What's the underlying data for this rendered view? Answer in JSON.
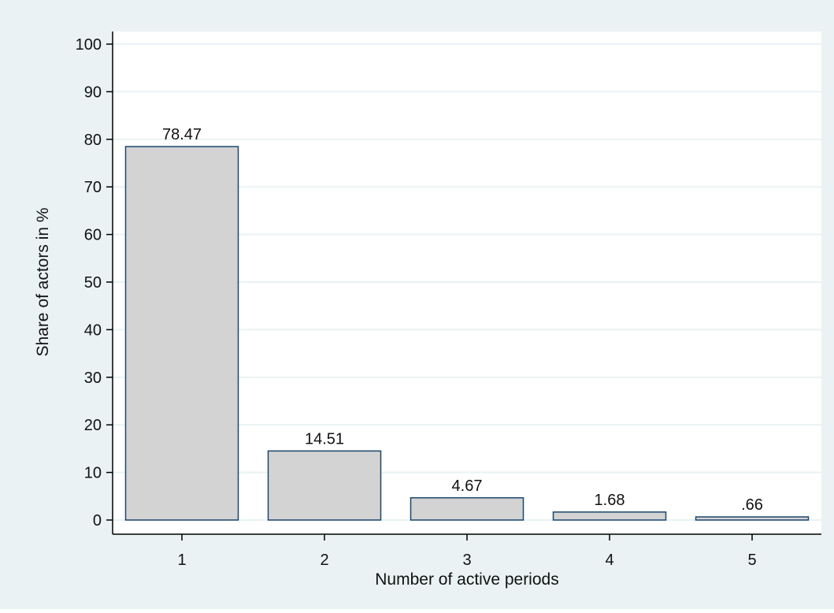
{
  "colors": {
    "background": "#eaf2f3",
    "plot_area": "#ffffff",
    "gridline": "#eaf2f3",
    "bar_fill": "#d3d3d3",
    "bar_stroke": "#1a476f",
    "axis": "#000000"
  },
  "chart_data": {
    "type": "bar",
    "title": "",
    "xlabel": "Number of active periods",
    "ylabel": "Share of actors in %",
    "categories": [
      "1",
      "2",
      "3",
      "4",
      "5"
    ],
    "values": [
      78.47,
      14.51,
      4.67,
      1.68,
      0.66
    ],
    "value_labels": [
      "78.47",
      "14.51",
      "4.67",
      "1.68",
      ".66"
    ],
    "ylim": [
      0,
      100
    ],
    "yticks": [
      0,
      10,
      20,
      30,
      40,
      50,
      60,
      70,
      80,
      90,
      100
    ],
    "grid": true,
    "legend": false
  }
}
